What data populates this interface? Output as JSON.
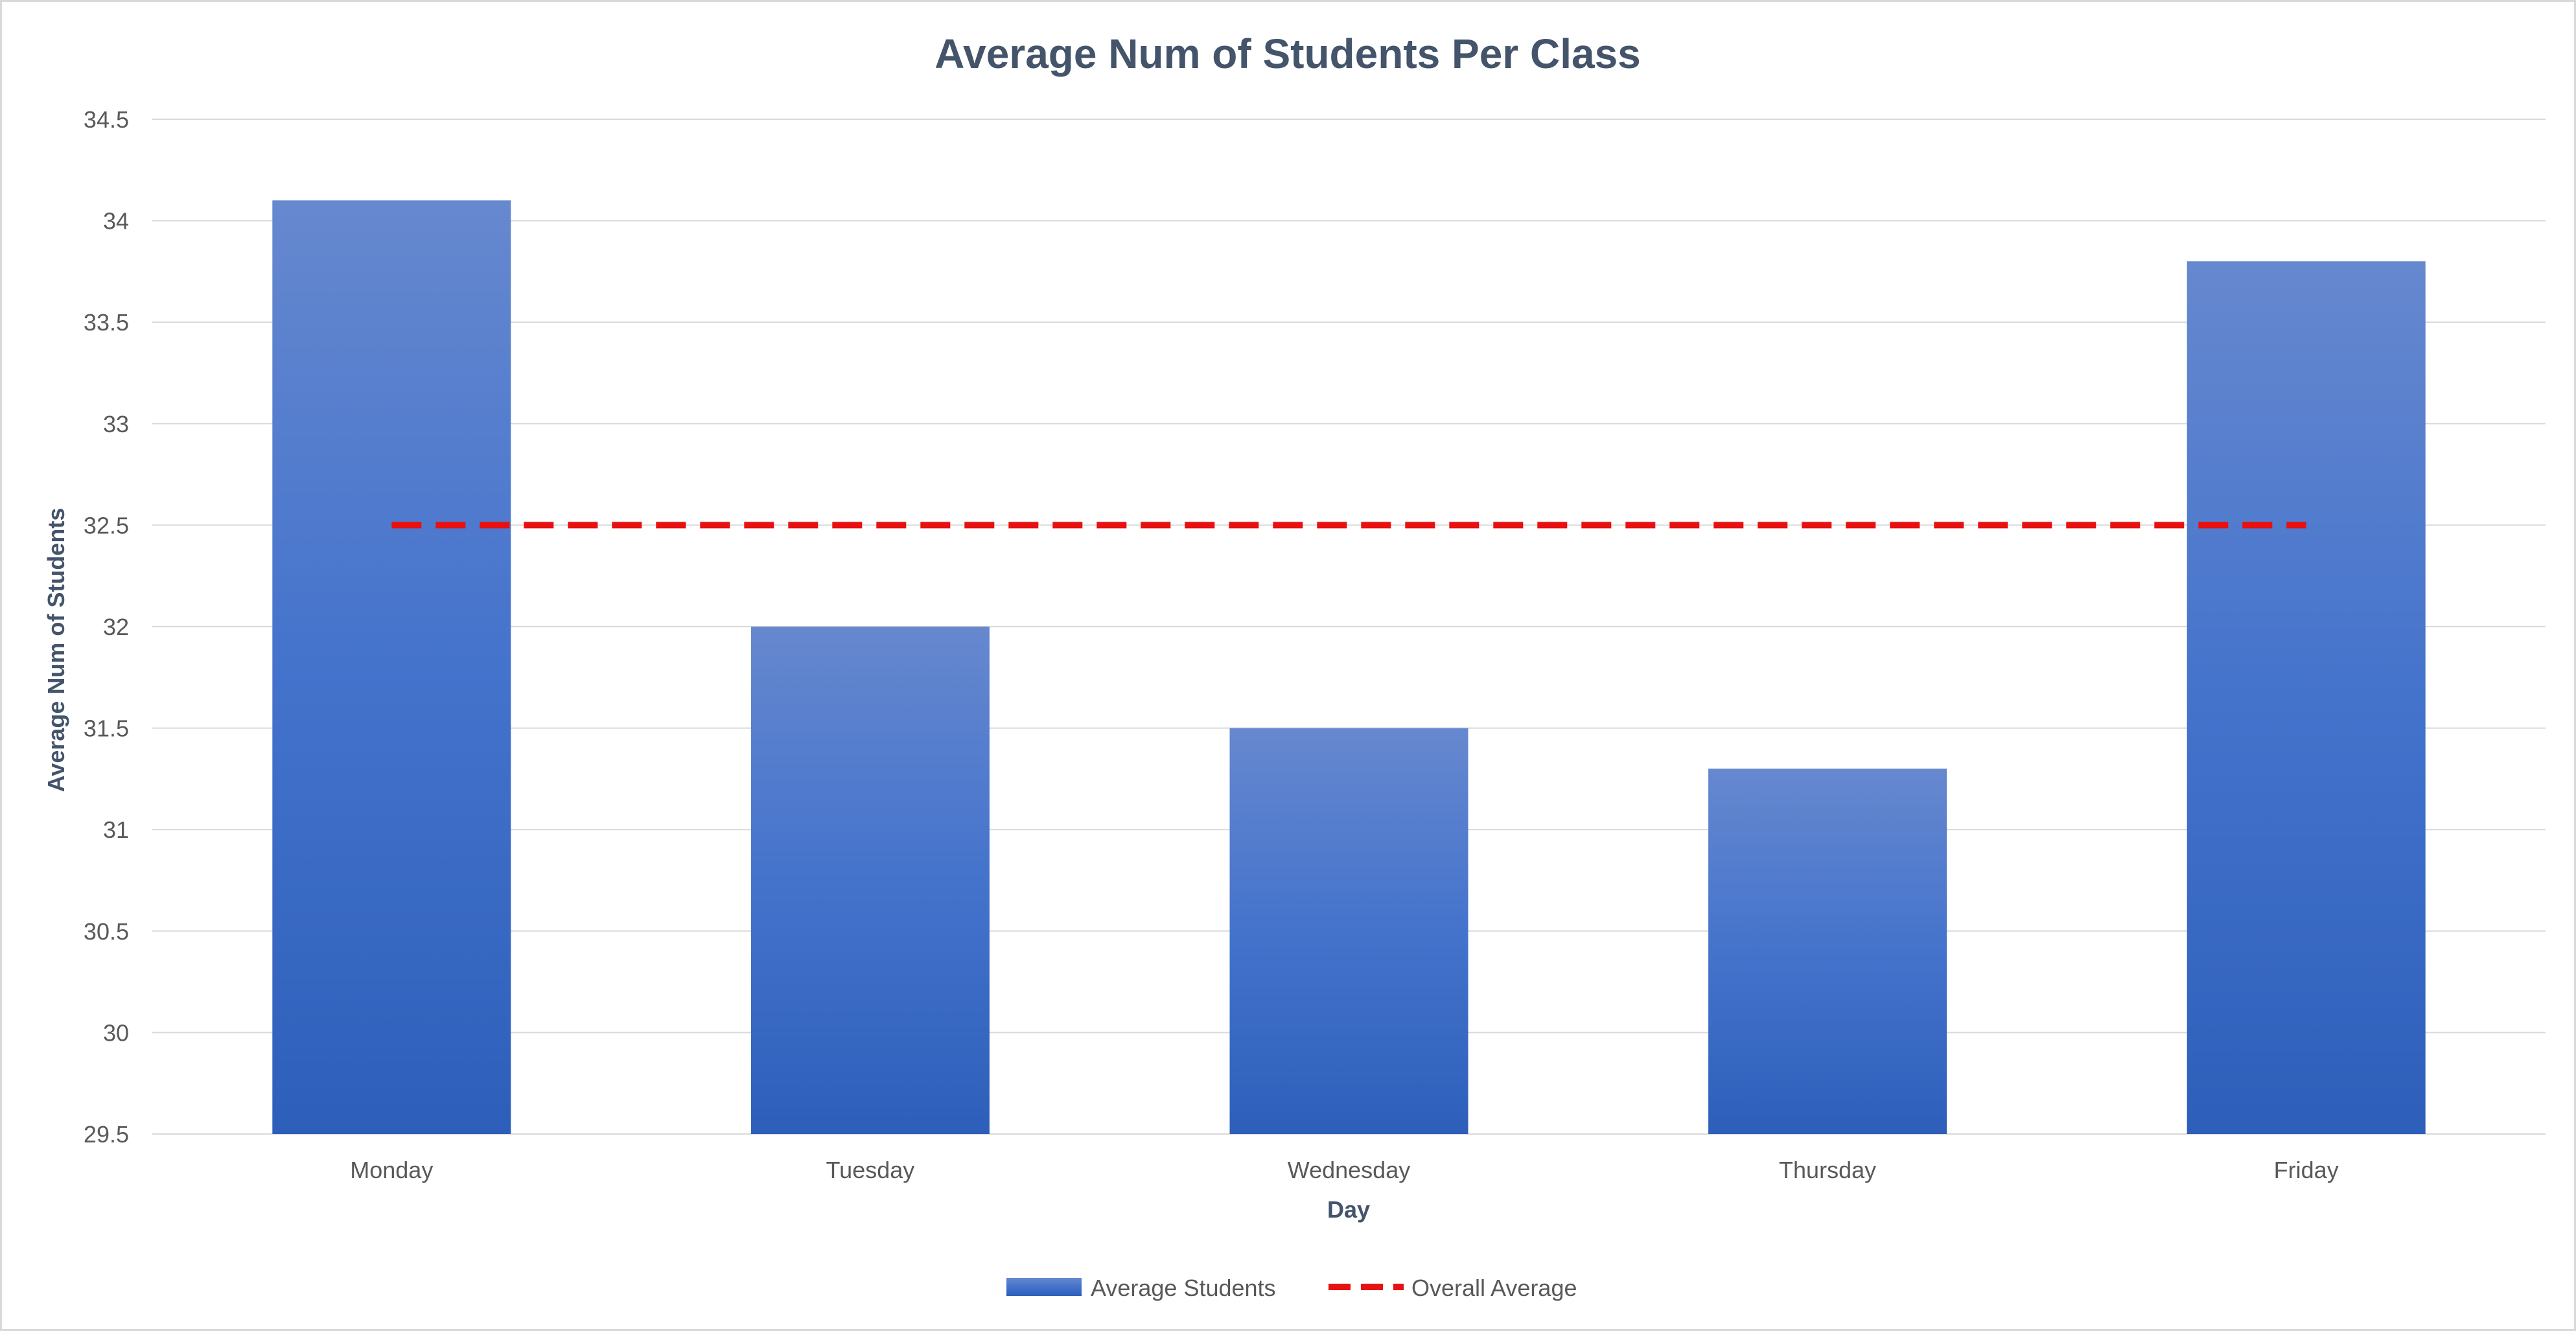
{
  "chart_data": {
    "type": "bar",
    "title": "Average Num of Students Per Class",
    "xlabel": "Day",
    "ylabel": "Average Num of Students",
    "categories": [
      "Monday",
      "Tuesday",
      "Wednesday",
      "Thursday",
      "Friday"
    ],
    "series": [
      {
        "name": "Average Students",
        "type": "bar",
        "values": [
          34.1,
          32.0,
          31.5,
          31.3,
          33.8
        ]
      },
      {
        "name": "Overall Average",
        "type": "line",
        "style": "dashed",
        "values": [
          32.5,
          32.5,
          32.5,
          32.5,
          32.5
        ]
      }
    ],
    "ylim": [
      29.5,
      34.5
    ],
    "yticks": [
      "29.5",
      "30",
      "30.5",
      "31",
      "31.5",
      "32",
      "32.5",
      "33",
      "33.5",
      "34",
      "34.5"
    ],
    "grid": true,
    "legend": "bottom",
    "colors": {
      "bar_top": "#6688cf",
      "bar_mid": "#4473cc",
      "bar_bottom": "#2d5fba",
      "average_line": "#e81010"
    }
  }
}
